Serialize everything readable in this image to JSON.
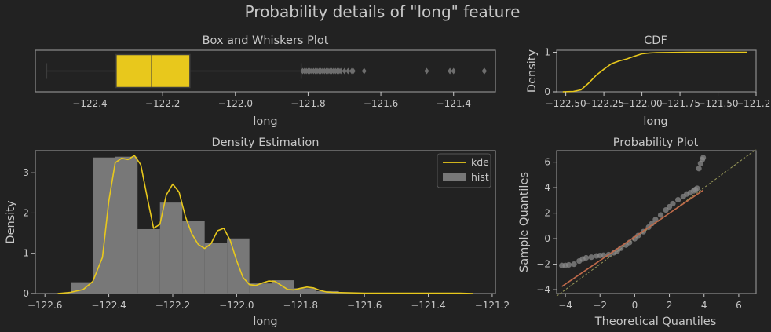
{
  "suptitle": "Probability details of \"long\" feature",
  "colors": {
    "background": "#222222",
    "frame": "#8c8c8c",
    "text": "#c8c8c8",
    "accent": "#e8c81c",
    "hist": "#787878",
    "outlier": "#6e6e6e",
    "fit_line": "#c06a4a"
  },
  "chart_data": [
    {
      "type": "box",
      "title": "Box and Whiskers Plot",
      "xlabel": "long",
      "ylabel": "",
      "xlim": [
        -122.55,
        -121.285
      ],
      "xticks": [
        -122.4,
        -122.2,
        -122.0,
        -121.8,
        -121.6,
        -121.4
      ],
      "stats": {
        "whisker_low": -122.519,
        "q1": -122.328,
        "median": -122.23,
        "q3": -122.125,
        "whisker_high": -121.819
      },
      "outliers": [
        -121.815,
        -121.81,
        -121.805,
        -121.8,
        -121.795,
        -121.79,
        -121.785,
        -121.78,
        -121.775,
        -121.77,
        -121.765,
        -121.76,
        -121.755,
        -121.75,
        -121.745,
        -121.74,
        -121.735,
        -121.73,
        -121.725,
        -121.72,
        -121.715,
        -121.71,
        -121.7,
        -121.69,
        -121.68,
        -121.676,
        -121.646,
        -121.474,
        -121.41,
        -121.4,
        -121.316,
        -121.315
      ]
    },
    {
      "type": "line",
      "title": "CDF",
      "xlabel": "long",
      "ylabel": "Density",
      "xlim": [
        -122.56,
        -121.25
      ],
      "ylim": [
        0,
        1.05
      ],
      "xticks": [
        -122.5,
        -122.25,
        -122.0,
        -121.75,
        -121.5,
        -121.25
      ],
      "xtick_labels": [
        "−122.50",
        "−122.25",
        "−122.00",
        "−121.75",
        "−121.50",
        "−121.25"
      ],
      "yticks": [
        0,
        1
      ],
      "x": [
        -122.52,
        -122.45,
        -122.4,
        -122.35,
        -122.3,
        -122.25,
        -122.2,
        -122.15,
        -122.1,
        -122.05,
        -122.0,
        -121.95,
        -121.9,
        -121.8,
        -121.7,
        -121.5,
        -121.31
      ],
      "y": [
        0.0,
        0.01,
        0.05,
        0.22,
        0.42,
        0.57,
        0.71,
        0.78,
        0.83,
        0.9,
        0.96,
        0.98,
        0.99,
        0.995,
        0.998,
        0.999,
        1.0
      ]
    },
    {
      "type": "bar",
      "title": "Density Estimation",
      "xlabel": "long",
      "ylabel": "Density",
      "xlim": [
        -122.63,
        -121.19
      ],
      "ylim": [
        0,
        3.55
      ],
      "xticks": [
        -122.6,
        -122.4,
        -122.2,
        -122.0,
        -121.8,
        -121.6,
        -121.4,
        -121.2
      ],
      "yticks": [
        0,
        1,
        2,
        3
      ],
      "legend": [
        "kde",
        "hist"
      ],
      "legend_position": "top-right",
      "hist": {
        "bin_edges": [
          -122.519,
          -122.45,
          -122.38,
          -122.31,
          -122.24,
          -122.17,
          -122.1,
          -122.03,
          -121.96,
          -121.89,
          -121.82,
          -121.75,
          -121.68,
          -121.61,
          -121.54,
          -121.47,
          -121.4,
          -121.33
        ],
        "counts": [
          0.28,
          3.38,
          3.4,
          1.6,
          2.26,
          1.8,
          1.25,
          1.37,
          0.25,
          0.33,
          0.13,
          0.06,
          0.02,
          0.0,
          0.0,
          0.01,
          0.01
        ]
      },
      "kde": {
        "x": [
          -122.56,
          -122.52,
          -122.48,
          -122.45,
          -122.42,
          -122.4,
          -122.38,
          -122.36,
          -122.34,
          -122.32,
          -122.3,
          -122.28,
          -122.26,
          -122.24,
          -122.22,
          -122.2,
          -122.18,
          -122.16,
          -122.14,
          -122.12,
          -122.1,
          -122.08,
          -122.06,
          -122.04,
          -122.02,
          -122.0,
          -121.98,
          -121.96,
          -121.94,
          -121.92,
          -121.9,
          -121.88,
          -121.86,
          -121.84,
          -121.82,
          -121.8,
          -121.78,
          -121.76,
          -121.74,
          -121.72,
          -121.7,
          -121.65,
          -121.6,
          -121.5,
          -121.4,
          -121.3,
          -121.26
        ],
        "y": [
          0.0,
          0.03,
          0.1,
          0.3,
          0.9,
          2.3,
          3.25,
          3.36,
          3.33,
          3.43,
          3.2,
          2.4,
          1.62,
          1.72,
          2.45,
          2.72,
          2.52,
          1.9,
          1.48,
          1.22,
          1.12,
          1.24,
          1.56,
          1.62,
          1.32,
          0.82,
          0.4,
          0.22,
          0.2,
          0.26,
          0.31,
          0.3,
          0.2,
          0.1,
          0.09,
          0.13,
          0.16,
          0.14,
          0.08,
          0.04,
          0.03,
          0.02,
          0.01,
          0.01,
          0.01,
          0.01,
          0.0
        ]
      }
    },
    {
      "type": "scatter",
      "title": "Probability Plot",
      "xlabel": "Theoretical Quantiles",
      "ylabel": "Sample Quantiles",
      "xlim": [
        -4.5,
        7.0
      ],
      "ylim": [
        -4.3,
        6.9
      ],
      "xticks": [
        -4,
        -2,
        0,
        2,
        4,
        6
      ],
      "yticks": [
        -4,
        -2,
        0,
        2,
        4,
        6
      ],
      "points_x": [
        -4.2,
        -4.0,
        -3.8,
        -3.5,
        -3.2,
        -3.0,
        -2.8,
        -2.5,
        -2.2,
        -2.0,
        -1.8,
        -1.5,
        -1.2,
        -1.0,
        -0.8,
        -0.5,
        -0.3,
        0.0,
        0.2,
        0.5,
        0.8,
        1.0,
        1.2,
        1.5,
        1.8,
        2.0,
        2.2,
        2.5,
        2.8,
        3.0,
        3.2,
        3.4,
        3.5,
        3.6,
        3.7,
        3.8,
        3.9,
        3.95
      ],
      "points_y": [
        -2.1,
        -2.1,
        -2.05,
        -2.0,
        -1.75,
        -1.6,
        -1.5,
        -1.45,
        -1.35,
        -1.32,
        -1.3,
        -1.25,
        -1.1,
        -0.95,
        -0.75,
        -0.5,
        -0.3,
        0.0,
        0.25,
        0.55,
        0.9,
        1.2,
        1.5,
        1.85,
        2.25,
        2.5,
        2.75,
        3.05,
        3.3,
        3.5,
        3.6,
        3.75,
        3.85,
        3.95,
        5.5,
        5.9,
        6.2,
        6.35
      ],
      "fit_line": {
        "x": [
          -4.2,
          3.95
        ],
        "y": [
          -3.75,
          3.8
        ]
      },
      "reference_line": {
        "x": [
          -4.5,
          7.0
        ],
        "y": [
          -4.5,
          7.0
        ]
      }
    }
  ]
}
